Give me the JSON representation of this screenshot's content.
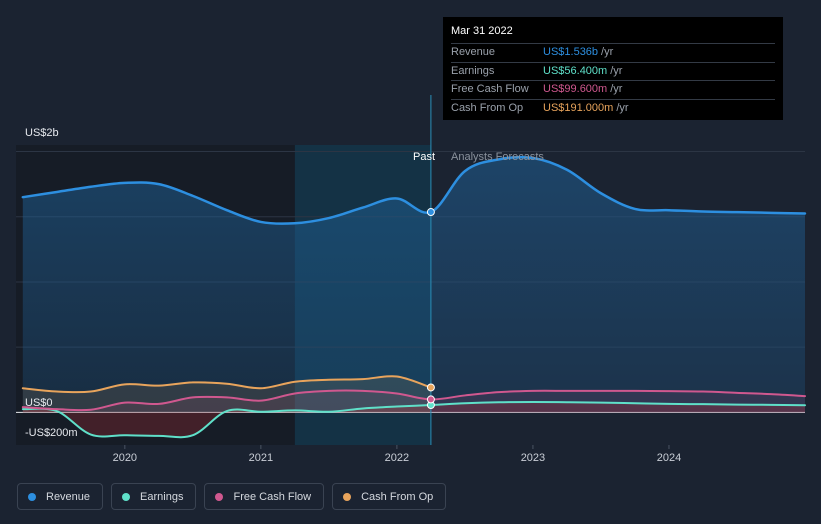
{
  "tooltip": {
    "date": "Mar 31 2022",
    "rows": [
      {
        "label": "Revenue",
        "value": "US$1.536b",
        "unit": "/yr",
        "color": "#2d8fe0"
      },
      {
        "label": "Earnings",
        "value": "US$56.400m",
        "unit": "/yr",
        "color": "#5fe0c9"
      },
      {
        "label": "Free Cash Flow",
        "value": "US$99.600m",
        "unit": "/yr",
        "color": "#d0588f"
      },
      {
        "label": "Cash From Op",
        "value": "US$191.000m",
        "unit": "/yr",
        "color": "#e8a45c"
      }
    ]
  },
  "legend": [
    {
      "label": "Revenue",
      "color": "#2d8fe0"
    },
    {
      "label": "Earnings",
      "color": "#5fe0c9"
    },
    {
      "label": "Free Cash Flow",
      "color": "#d0588f"
    },
    {
      "label": "Cash From Op",
      "color": "#e8a45c"
    }
  ],
  "chart_data": {
    "type": "area",
    "y_unit_labels": {
      "top": "US$2b",
      "zero": "US$0",
      "bottom": "-US$200m"
    },
    "ylim": [
      -250,
      2050
    ],
    "xlim": [
      2019.2,
      2025.0
    ],
    "x_ticks": [
      "2020",
      "2021",
      "2022",
      "2023",
      "2024"
    ],
    "x_tick_values": [
      2020,
      2021,
      2022,
      2023,
      2024
    ],
    "past_label": "Past",
    "forecast_label": "Analysts Forecasts",
    "split_x": 2022.25,
    "highlight_start_x": 2021.25,
    "grid": true,
    "legend_position": "bottom-left",
    "series": [
      {
        "name": "Revenue",
        "color": "#2d8fe0",
        "x": [
          2019.25,
          2019.5,
          2019.75,
          2020.0,
          2020.25,
          2020.5,
          2020.75,
          2021.0,
          2021.25,
          2021.5,
          2021.75,
          2022.0,
          2022.25,
          2022.5,
          2022.75,
          2023.0,
          2023.25,
          2023.5,
          2023.75,
          2024.0,
          2024.25,
          2024.5,
          2024.75,
          2025.0
        ],
        "values": [
          1650,
          1690,
          1730,
          1760,
          1750,
          1660,
          1550,
          1460,
          1450,
          1490,
          1570,
          1640,
          1536,
          1850,
          1940,
          1950,
          1860,
          1680,
          1560,
          1550,
          1540,
          1535,
          1530,
          1525
        ]
      },
      {
        "name": "Earnings",
        "color": "#5fe0c9",
        "x": [
          2019.25,
          2019.5,
          2019.75,
          2020.0,
          2020.25,
          2020.5,
          2020.75,
          2021.0,
          2021.25,
          2021.5,
          2021.75,
          2022.0,
          2022.25,
          2022.5,
          2022.75,
          2023.0,
          2023.25,
          2023.5,
          2023.75,
          2024.0,
          2024.25,
          2024.5,
          2024.75,
          2025.0
        ],
        "values": [
          25,
          10,
          -170,
          -175,
          -180,
          -175,
          10,
          5,
          15,
          5,
          30,
          45,
          56.4,
          70,
          78,
          80,
          78,
          75,
          70,
          65,
          63,
          60,
          58,
          55
        ]
      },
      {
        "name": "Free Cash Flow",
        "color": "#d0588f",
        "x": [
          2019.25,
          2019.5,
          2019.75,
          2020.0,
          2020.25,
          2020.5,
          2020.75,
          2021.0,
          2021.25,
          2021.5,
          2021.75,
          2022.0,
          2022.25,
          2022.5,
          2022.75,
          2023.0,
          2023.25,
          2023.5,
          2023.75,
          2024.0,
          2024.25,
          2024.5,
          2024.75,
          2025.0
        ],
        "values": [
          40,
          25,
          20,
          75,
          65,
          115,
          115,
          90,
          145,
          165,
          165,
          145,
          99.6,
          130,
          155,
          165,
          165,
          165,
          165,
          163,
          160,
          150,
          140,
          125
        ]
      },
      {
        "name": "Cash From Op",
        "color": "#e8a45c",
        "x": [
          2019.25,
          2019.5,
          2019.75,
          2020.0,
          2020.25,
          2020.5,
          2020.75,
          2021.0,
          2021.25,
          2021.5,
          2021.75,
          2022.0,
          2022.25
        ],
        "values": [
          185,
          160,
          160,
          215,
          205,
          230,
          220,
          185,
          235,
          250,
          255,
          275,
          191
        ]
      }
    ]
  }
}
